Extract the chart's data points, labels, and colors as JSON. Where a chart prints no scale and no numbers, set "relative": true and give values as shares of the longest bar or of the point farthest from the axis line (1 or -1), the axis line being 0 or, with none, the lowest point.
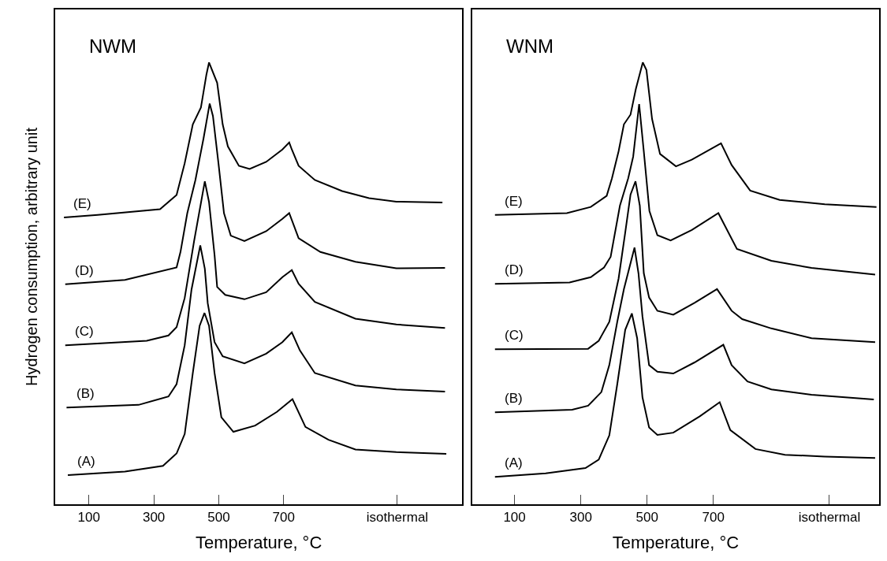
{
  "chart_data": [
    {
      "type": "line",
      "title": "NWM",
      "xlabel": "Temperature, °C",
      "ylabel": "Hydrogen consumption, arbitrary unit",
      "relative": true,
      "xlim": [
        -4,
        1250
      ],
      "xticks": [
        100,
        300,
        500,
        700,
        {
          "value": 1050,
          "label": "isothermal"
        }
      ],
      "series": [
        {
          "name": "(A)",
          "color": "#000000",
          "x": [
            35,
            211,
            328,
            370,
            395,
            420,
            441,
            456,
            470,
            487,
            508,
            545,
            612,
            679,
            727,
            767,
            838,
            921,
            1047,
            1201
          ],
          "values": [
            0.066,
            0.074,
            0.087,
            0.115,
            0.159,
            0.297,
            0.404,
            0.433,
            0.404,
            0.297,
            0.197,
            0.164,
            0.178,
            0.209,
            0.238,
            0.175,
            0.146,
            0.124,
            0.118,
            0.114
          ]
        },
        {
          "name": "(B)",
          "color": "#000000",
          "x": [
            31,
            253,
            345,
            370,
            395,
            416,
            443,
            457,
            466,
            487,
            512,
            579,
            646,
            696,
            725,
            750,
            796,
            921,
            1047,
            1197
          ],
          "values": [
            0.219,
            0.225,
            0.244,
            0.272,
            0.36,
            0.486,
            0.586,
            0.533,
            0.455,
            0.367,
            0.335,
            0.319,
            0.341,
            0.367,
            0.389,
            0.348,
            0.297,
            0.269,
            0.26,
            0.255
          ]
        },
        {
          "name": "(C)",
          "color": "#000000",
          "x": [
            27,
            278,
            345,
            370,
            395,
            424,
            457,
            470,
            487,
            495,
            520,
            579,
            646,
            696,
            725,
            746,
            796,
            921,
            1047,
            1197
          ],
          "values": [
            0.36,
            0.37,
            0.382,
            0.401,
            0.467,
            0.596,
            0.731,
            0.684,
            0.564,
            0.492,
            0.474,
            0.464,
            0.48,
            0.514,
            0.53,
            0.499,
            0.458,
            0.42,
            0.407,
            0.399
          ]
        },
        {
          "name": "(D)",
          "color": "#000000",
          "x": [
            27,
            211,
            370,
            382,
            403,
            428,
            453,
            472,
            482,
            499,
            516,
            537,
            579,
            646,
            696,
            717,
            746,
            813,
            921,
            1047,
            1197
          ],
          "values": [
            0.498,
            0.508,
            0.536,
            0.571,
            0.659,
            0.734,
            0.828,
            0.907,
            0.879,
            0.772,
            0.659,
            0.608,
            0.596,
            0.618,
            0.646,
            0.659,
            0.602,
            0.571,
            0.549,
            0.534,
            0.535
          ]
        },
        {
          "name": "(E)",
          "color": "#000000",
          "x": [
            23,
            127,
            319,
            370,
            395,
            420,
            445,
            462,
            470,
            495,
            512,
            528,
            562,
            595,
            646,
            696,
            717,
            725,
            746,
            796,
            880,
            963,
            1047,
            1189
          ],
          "values": [
            0.649,
            0.655,
            0.668,
            0.7,
            0.772,
            0.86,
            0.898,
            0.973,
            1.0,
            0.954,
            0.86,
            0.81,
            0.766,
            0.759,
            0.775,
            0.803,
            0.819,
            0.803,
            0.766,
            0.734,
            0.709,
            0.693,
            0.685,
            0.683
          ]
        }
      ]
    },
    {
      "type": "line",
      "title": "WNM",
      "xlabel": "Temperature, °C",
      "relative": true,
      "xlim": [
        -28,
        1200
      ],
      "xticks": [
        100,
        300,
        500,
        700,
        {
          "value": 1050,
          "label": "isothermal"
        }
      ],
      "series": [
        {
          "name": "(A)",
          "color": "#000000",
          "x": [
            41,
            194,
            314,
            354,
            386,
            410,
            434,
            454,
            470,
            486,
            506,
            531,
            579,
            659,
            719,
            751,
            827,
            916,
            1036,
            1188
          ],
          "values": [
            0.062,
            0.07,
            0.082,
            0.101,
            0.156,
            0.272,
            0.395,
            0.432,
            0.376,
            0.242,
            0.174,
            0.157,
            0.162,
            0.199,
            0.231,
            0.168,
            0.125,
            0.112,
            0.108,
            0.105
          ]
        },
        {
          "name": "(B)",
          "color": "#000000",
          "x": [
            41,
            274,
            322,
            362,
            386,
            410,
            430,
            462,
            474,
            486,
            506,
            531,
            579,
            643,
            730,
            755,
            803,
            875,
            996,
            1184
          ],
          "values": [
            0.208,
            0.214,
            0.223,
            0.254,
            0.315,
            0.413,
            0.487,
            0.581,
            0.523,
            0.425,
            0.315,
            0.3,
            0.296,
            0.321,
            0.361,
            0.315,
            0.278,
            0.26,
            0.248,
            0.237
          ]
        },
        {
          "name": "(C)",
          "color": "#000000",
          "x": [
            41,
            322,
            354,
            386,
            414,
            434,
            450,
            465,
            478,
            490,
            506,
            531,
            579,
            643,
            711,
            755,
            787,
            875,
            996,
            1188
          ],
          "values": [
            0.351,
            0.352,
            0.37,
            0.413,
            0.511,
            0.615,
            0.701,
            0.731,
            0.676,
            0.523,
            0.468,
            0.438,
            0.429,
            0.456,
            0.487,
            0.438,
            0.419,
            0.398,
            0.376,
            0.367
          ]
        },
        {
          "name": "(D)",
          "color": "#000000",
          "x": [
            41,
            266,
            330,
            370,
            390,
            418,
            443,
            458,
            476,
            490,
            507,
            531,
            571,
            635,
            715,
            771,
            875,
            996,
            1188
          ],
          "values": [
            0.499,
            0.502,
            0.514,
            0.536,
            0.56,
            0.676,
            0.738,
            0.787,
            0.906,
            0.799,
            0.664,
            0.609,
            0.597,
            0.621,
            0.659,
            0.578,
            0.551,
            0.535,
            0.52
          ]
        },
        {
          "name": "(E)",
          "color": "#000000",
          "x": [
            41,
            258,
            330,
            378,
            394,
            414,
            430,
            450,
            466,
            487,
            498,
            515,
            539,
            587,
            635,
            723,
            755,
            811,
            900,
            1036,
            1192
          ],
          "values": [
            0.655,
            0.659,
            0.673,
            0.698,
            0.738,
            0.799,
            0.86,
            0.882,
            0.94,
            1.0,
            0.983,
            0.872,
            0.793,
            0.765,
            0.78,
            0.817,
            0.768,
            0.71,
            0.689,
            0.679,
            0.673
          ]
        }
      ]
    }
  ]
}
